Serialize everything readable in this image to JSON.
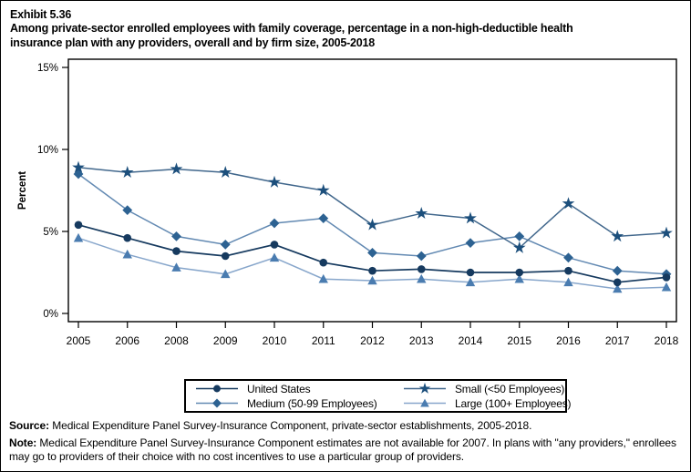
{
  "header": {
    "exhibit": "Exhibit 5.36",
    "title_line1": "Among private-sector enrolled employees with family coverage, percentage in a non-high-deductible health",
    "title_line2": "insurance plan with any providers, overall and by firm size, 2005-2018"
  },
  "chart_data": {
    "type": "line",
    "ylabel": "Percent",
    "ylim": [
      0,
      15
    ],
    "yticks": [
      {
        "value": 0,
        "label": "0%"
      },
      {
        "value": 5,
        "label": "5%"
      },
      {
        "value": 10,
        "label": "10%"
      },
      {
        "value": 15,
        "label": "15%"
      }
    ],
    "grid": false,
    "legend_position": "bottom",
    "categories": [
      "2005",
      "2006",
      "2008",
      "2009",
      "2010",
      "2011",
      "2012",
      "2013",
      "2014",
      "2015",
      "2016",
      "2017",
      "2018"
    ],
    "series": [
      {
        "name": "United States",
        "marker": "circle",
        "color": "#163A5F",
        "line_color": "#163A5F",
        "values": [
          5.4,
          4.6,
          3.8,
          3.5,
          4.2,
          3.1,
          2.6,
          2.7,
          2.5,
          2.5,
          2.6,
          1.9,
          2.2
        ]
      },
      {
        "name": "Medium (50-99 Employees)",
        "marker": "diamond",
        "color": "#2D6292",
        "line_color": "#6289B2",
        "values": [
          8.5,
          6.3,
          4.7,
          4.2,
          5.5,
          5.8,
          3.7,
          3.5,
          4.3,
          4.7,
          3.4,
          2.6,
          2.4
        ]
      },
      {
        "name": "Small (<50 Employees)",
        "marker": "star",
        "color": "#1C4F7C",
        "line_color": "#41678C",
        "values": [
          8.9,
          8.6,
          8.8,
          8.6,
          8.0,
          7.5,
          5.4,
          6.1,
          5.8,
          4.0,
          6.7,
          4.7,
          4.9
        ]
      },
      {
        "name": "Large (100+ Employees)",
        "marker": "triangle",
        "color": "#4A7CB0",
        "line_color": "#87A6CB",
        "values": [
          4.6,
          3.6,
          2.8,
          2.4,
          3.4,
          2.1,
          2.0,
          2.1,
          1.9,
          2.1,
          1.9,
          1.5,
          1.6
        ]
      }
    ],
    "legend_order": [
      0,
      2,
      1,
      3
    ],
    "draw_order": [
      3,
      1,
      0,
      2
    ]
  },
  "footer": {
    "source_label": "Source:",
    "source_text": " Medical Expenditure Panel Survey-Insurance Component, private-sector establishments, 2005-2018.",
    "note_label": "Note:",
    "note_text": " Medical Expenditure Panel Survey-Insurance Component estimates are not available for 2007. In plans with \"any providers,\" enrollees may go to providers of their choice with no cost incentives to use a particular group of providers."
  }
}
